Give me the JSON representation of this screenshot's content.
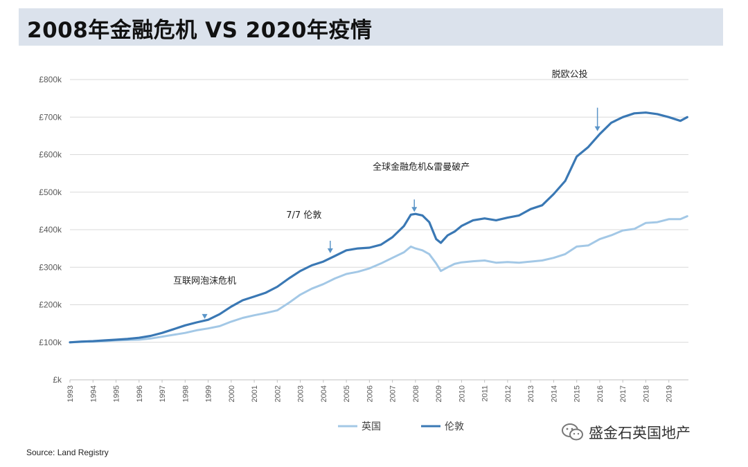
{
  "page_title": "2008年金融危机 VS 2020年疫情",
  "source": "Source: Land Registry",
  "watermark": "盛金石英国地产",
  "colors": {
    "uk": "#a3c8e6",
    "london": "#3a78b4",
    "arrow": "#5b95c8",
    "grid": "#d9d9d9"
  },
  "chart_data": {
    "type": "line",
    "title": "",
    "xlabel": "",
    "ylabel": "",
    "ylim": [
      0,
      800000
    ],
    "xlim": [
      1993,
      2019.85
    ],
    "yticks": [
      0,
      100000,
      200000,
      300000,
      400000,
      500000,
      600000,
      700000,
      800000
    ],
    "ytick_labels": [
      "£k",
      "£100k",
      "£200k",
      "£300k",
      "£400k",
      "£500k",
      "£600k",
      "£700k",
      "£800k"
    ],
    "xtick_labels": [
      "1993",
      "1994",
      "1995",
      "1996",
      "1997",
      "1998",
      "1999",
      "2000",
      "2001",
      "2002",
      "2003",
      "2004",
      "2005",
      "2006",
      "2007",
      "2008",
      "2009",
      "2010",
      "2011",
      "2012",
      "2013",
      "2014",
      "2015",
      "2016",
      "2017",
      "2018",
      "2019"
    ],
    "grid": "horizontal",
    "legend": "bottom-center",
    "series": [
      {
        "name": "英国",
        "x": [
          1993,
          1993.5,
          1994,
          1994.5,
          1995,
          1995.5,
          1996,
          1996.5,
          1997,
          1997.5,
          1998,
          1998.5,
          1999,
          1999.5,
          2000,
          2000.5,
          2001,
          2001.5,
          2002,
          2002.5,
          2003,
          2003.5,
          2004,
          2004.5,
          2005,
          2005.5,
          2006,
          2006.5,
          2007,
          2007.5,
          2007.8,
          2008,
          2008.3,
          2008.6,
          2008.9,
          2009.1,
          2009.4,
          2009.7,
          2010,
          2010.5,
          2011,
          2011.5,
          2012,
          2012.5,
          2013,
          2013.5,
          2014,
          2014.5,
          2015,
          2015.5,
          2016,
          2016.5,
          2017,
          2017.5,
          2018,
          2018.5,
          2019,
          2019.5,
          2019.8
        ],
        "values": [
          100000,
          101000,
          102000,
          103000,
          105000,
          106000,
          107000,
          110000,
          115000,
          120000,
          125000,
          132000,
          137000,
          143000,
          155000,
          165000,
          172000,
          178000,
          185000,
          205000,
          227000,
          243000,
          255000,
          270000,
          282000,
          288000,
          297000,
          310000,
          325000,
          340000,
          355000,
          350000,
          345000,
          335000,
          310000,
          290000,
          300000,
          309000,
          313000,
          316000,
          318000,
          312000,
          314000,
          312000,
          315000,
          318000,
          325000,
          335000,
          355000,
          358000,
          375000,
          385000,
          398000,
          402000,
          418000,
          420000,
          428000,
          428000,
          436000
        ]
      },
      {
        "name": "伦敦",
        "x": [
          1993,
          1993.5,
          1994,
          1994.5,
          1995,
          1995.5,
          1996,
          1996.5,
          1997,
          1997.5,
          1998,
          1998.5,
          1999,
          1999.5,
          2000,
          2000.5,
          2001,
          2001.5,
          2002,
          2002.5,
          2003,
          2003.5,
          2004,
          2004.5,
          2005,
          2005.5,
          2006,
          2006.5,
          2007,
          2007.5,
          2007.8,
          2008,
          2008.3,
          2008.6,
          2008.9,
          2009.1,
          2009.4,
          2009.7,
          2010,
          2010.5,
          2011,
          2011.5,
          2012,
          2012.5,
          2013,
          2013.5,
          2014,
          2014.5,
          2015,
          2015.5,
          2016,
          2016.5,
          2017,
          2017.5,
          2018,
          2018.5,
          2019,
          2019.5,
          2019.8
        ],
        "values": [
          100000,
          102000,
          103000,
          105000,
          107000,
          109000,
          112000,
          117000,
          125000,
          135000,
          145000,
          153000,
          160000,
          175000,
          195000,
          212000,
          222000,
          232000,
          248000,
          270000,
          290000,
          305000,
          315000,
          330000,
          345000,
          350000,
          352000,
          360000,
          380000,
          410000,
          440000,
          442000,
          438000,
          420000,
          375000,
          365000,
          385000,
          395000,
          410000,
          425000,
          430000,
          425000,
          432000,
          438000,
          455000,
          465000,
          495000,
          530000,
          595000,
          620000,
          655000,
          685000,
          700000,
          710000,
          712000,
          708000,
          700000,
          690000,
          700000
        ]
      }
    ],
    "annotations": [
      {
        "text": "互联网泡沫危机",
        "x": 1998.85,
        "y": 155000
      },
      {
        "text": "7/7 伦敦",
        "x": 2004.3,
        "y": 330000
      },
      {
        "text": "全球金融危机&雷曼破产",
        "x": 2007.95,
        "y": 440000
      },
      {
        "text": "脱欧公投",
        "x": 2015.9,
        "y": 655000
      }
    ]
  }
}
